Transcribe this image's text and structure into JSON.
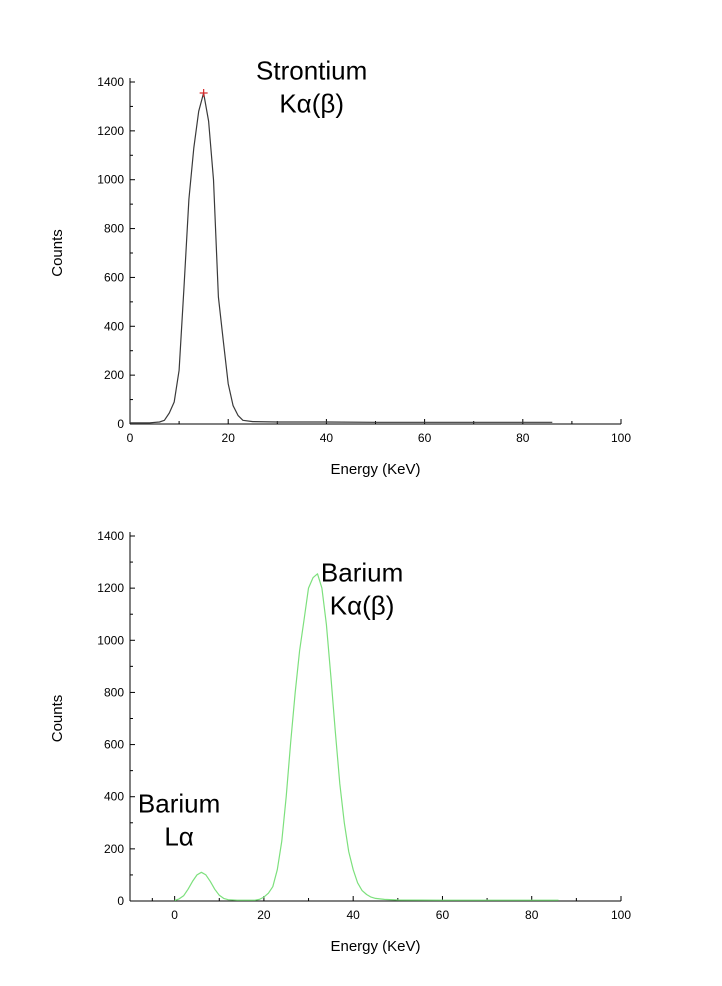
{
  "chart_data": [
    {
      "type": "line",
      "xlabel": "Energy (KeV)",
      "ylabel": "Counts",
      "xlim": [
        0,
        100
      ],
      "ylim": [
        0,
        1400
      ],
      "x_ticks": [
        0,
        20,
        40,
        60,
        80,
        100
      ],
      "y_ticks": [
        0,
        200,
        400,
        600,
        800,
        1000,
        1200,
        1400
      ],
      "grid": false,
      "series": [
        {
          "color": "#3a3a3a",
          "x": [
            0,
            2,
            4,
            6,
            7,
            8,
            9,
            10,
            11,
            12,
            13,
            14,
            15,
            16,
            17,
            18,
            19,
            20,
            21,
            22,
            23,
            25,
            30,
            40,
            50,
            60,
            70,
            80,
            86
          ],
          "y": [
            5,
            5,
            5,
            8,
            15,
            45,
            90,
            220,
            560,
            920,
            1130,
            1280,
            1355,
            1240,
            1000,
            520,
            340,
            165,
            75,
            35,
            15,
            10,
            8,
            8,
            7,
            7,
            7,
            7,
            7
          ]
        }
      ],
      "peak_marker": {
        "x": 15,
        "y": 1355,
        "color": "#d62728"
      },
      "annotations": [
        {
          "lines": [
            "Strontium",
            "Kα(β)"
          ],
          "x": 37,
          "y": 1410
        }
      ]
    },
    {
      "type": "line",
      "xlabel": "Energy (KeV)",
      "ylabel": "Counts",
      "xlim": [
        -10,
        100
      ],
      "ylim": [
        0,
        1400
      ],
      "x_ticks": [
        0,
        20,
        40,
        60,
        80,
        100
      ],
      "y_ticks": [
        0,
        200,
        400,
        600,
        800,
        1000,
        1200,
        1400
      ],
      "grid": false,
      "series": [
        {
          "color": "#7de07d",
          "x": [
            0,
            1,
            2,
            3,
            4,
            5,
            6,
            7,
            8,
            9,
            10,
            11,
            12,
            14,
            16,
            18,
            19,
            20,
            21,
            22,
            23,
            24,
            25,
            26,
            27,
            28,
            29,
            30,
            31,
            32,
            33,
            34,
            35,
            36,
            37,
            38,
            39,
            40,
            41,
            42,
            43,
            44,
            45,
            47,
            50,
            60,
            70,
            80,
            86
          ],
          "y": [
            2,
            8,
            20,
            45,
            75,
            100,
            110,
            100,
            75,
            45,
            22,
            10,
            5,
            3,
            3,
            3,
            6,
            15,
            30,
            55,
            120,
            230,
            400,
            610,
            800,
            960,
            1080,
            1200,
            1240,
            1255,
            1200,
            1060,
            860,
            650,
            450,
            300,
            190,
            120,
            70,
            40,
            25,
            15,
            10,
            6,
            4,
            3,
            3,
            3,
            3
          ]
        }
      ],
      "annotations": [
        {
          "lines": [
            "Barium",
            "Kα(β)"
          ],
          "x": 42,
          "y": 1225
        },
        {
          "lines": [
            "Barium",
            "Lα"
          ],
          "x": 1,
          "y": 340
        }
      ]
    }
  ]
}
